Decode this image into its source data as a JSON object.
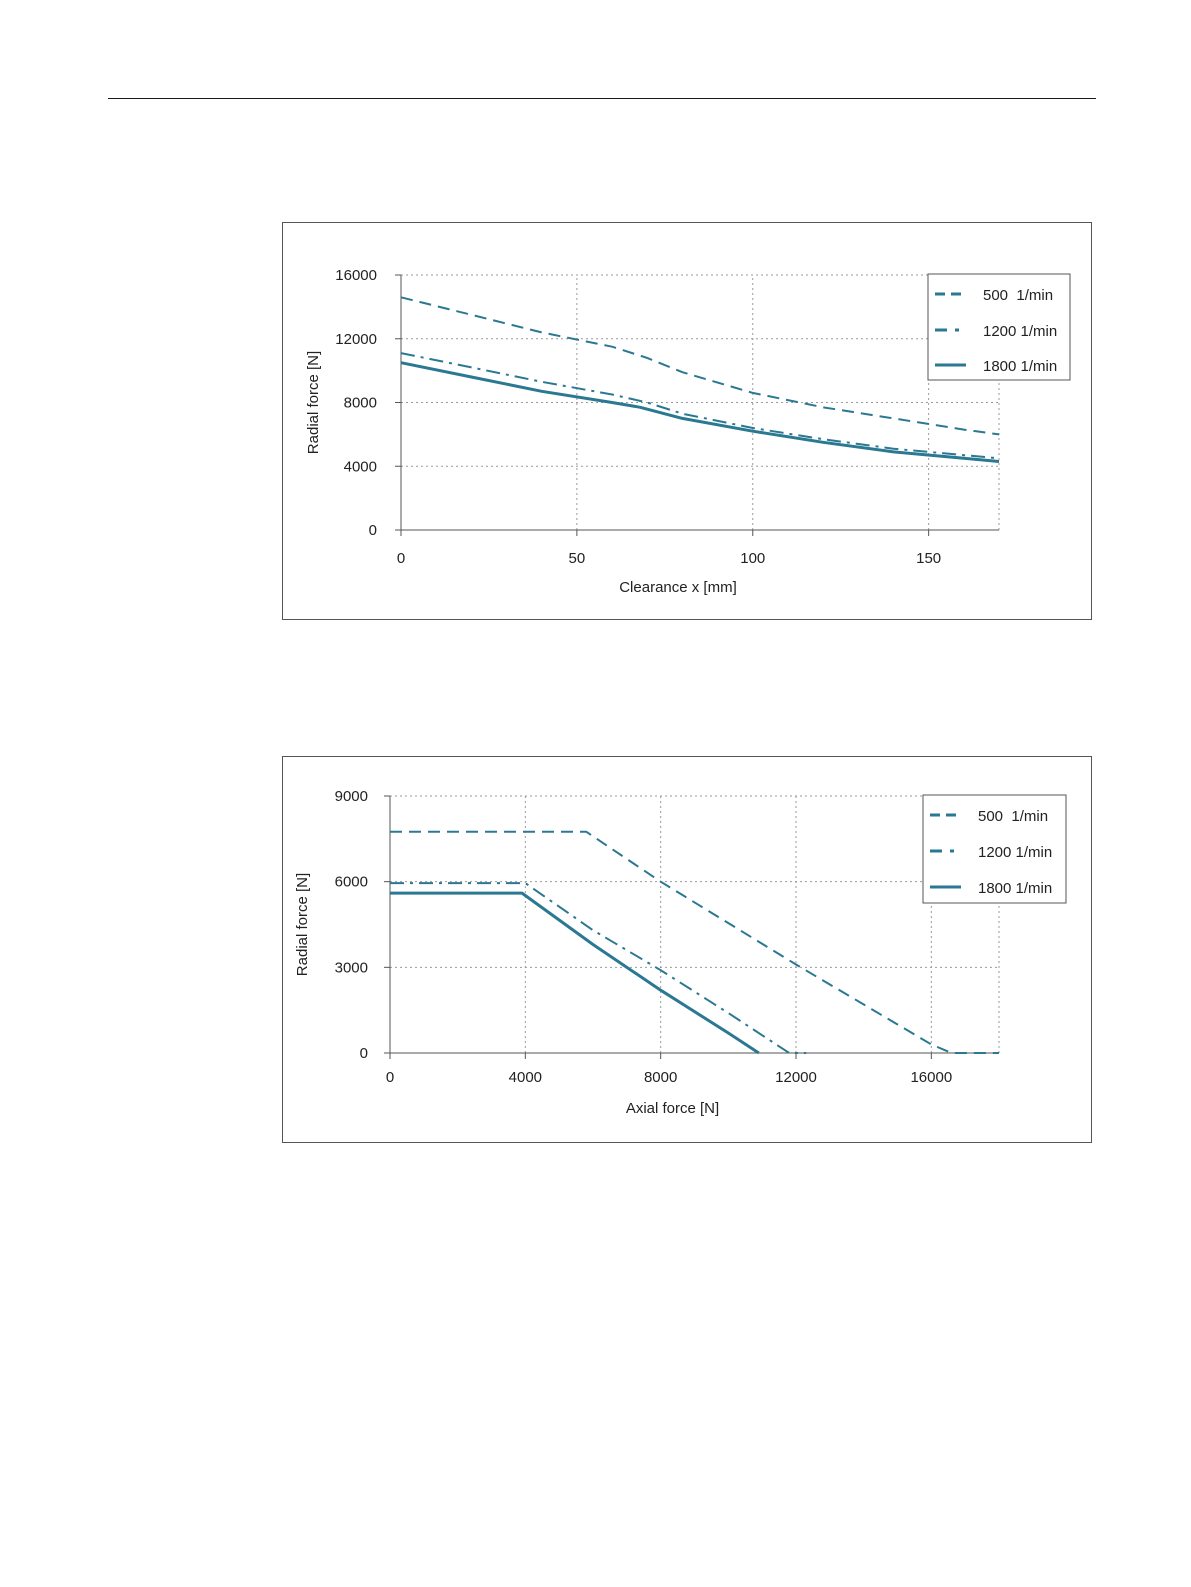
{
  "chart_data": [
    {
      "type": "line",
      "xlabel": "Clearance x [mm]",
      "ylabel": "Radial force [N]",
      "xlim": [
        0,
        170
      ],
      "ylim": [
        0,
        16000
      ],
      "xticks": [
        0,
        50,
        100,
        150
      ],
      "yticks": [
        0,
        4000,
        8000,
        12000,
        16000
      ],
      "grid": true,
      "legend_position": "top-right",
      "series": [
        {
          "name": "500  1/min",
          "style": "dashed",
          "x": [
            0,
            20,
            40,
            60,
            70,
            80,
            100,
            120,
            140,
            160,
            170
          ],
          "y": [
            14600,
            13500,
            12400,
            11500,
            10800,
            9900,
            8600,
            7700,
            7000,
            6300,
            6000
          ]
        },
        {
          "name": "1200 1/min",
          "style": "dashdot",
          "x": [
            0,
            20,
            40,
            60,
            70,
            80,
            100,
            120,
            140,
            160,
            170
          ],
          "y": [
            11100,
            10200,
            9300,
            8500,
            8000,
            7300,
            6400,
            5700,
            5100,
            4700,
            4500
          ]
        },
        {
          "name": "1800 1/min",
          "style": "solid",
          "x": [
            0,
            20,
            40,
            60,
            68,
            80,
            100,
            120,
            140,
            160,
            170
          ],
          "y": [
            10500,
            9600,
            8700,
            8000,
            7700,
            7000,
            6200,
            5500,
            4900,
            4500,
            4300
          ]
        }
      ]
    },
    {
      "type": "line",
      "xlabel": "Axial force [N]",
      "ylabel": "Radial force [N]",
      "xlim": [
        0,
        18000
      ],
      "ylim": [
        0,
        9000
      ],
      "xticks": [
        0,
        4000,
        8000,
        12000,
        16000
      ],
      "yticks": [
        0,
        3000,
        6000,
        9000
      ],
      "grid": true,
      "legend_position": "top-right",
      "series": [
        {
          "name": "500  1/min",
          "style": "dashed",
          "x": [
            0,
            5800,
            8000,
            12000,
            16000,
            16600,
            18000
          ],
          "y": [
            7750,
            7750,
            6000,
            3100,
            300,
            0,
            0
          ]
        },
        {
          "name": "1200 1/min",
          "style": "dashdot",
          "x": [
            0,
            4000,
            6000,
            8000,
            10000,
            11800,
            12300
          ],
          "y": [
            5950,
            5950,
            4300,
            2900,
            1400,
            0,
            0
          ]
        },
        {
          "name": "1800 1/min",
          "style": "solid",
          "x": [
            0,
            3900,
            6000,
            8000,
            10000,
            10900
          ],
          "y": [
            5600,
            5600,
            3800,
            2200,
            700,
            0
          ]
        }
      ]
    }
  ],
  "colors": {
    "series": "#2a7892",
    "grid": "#9a9a9a",
    "axis": "#555555",
    "text": "#222222"
  }
}
